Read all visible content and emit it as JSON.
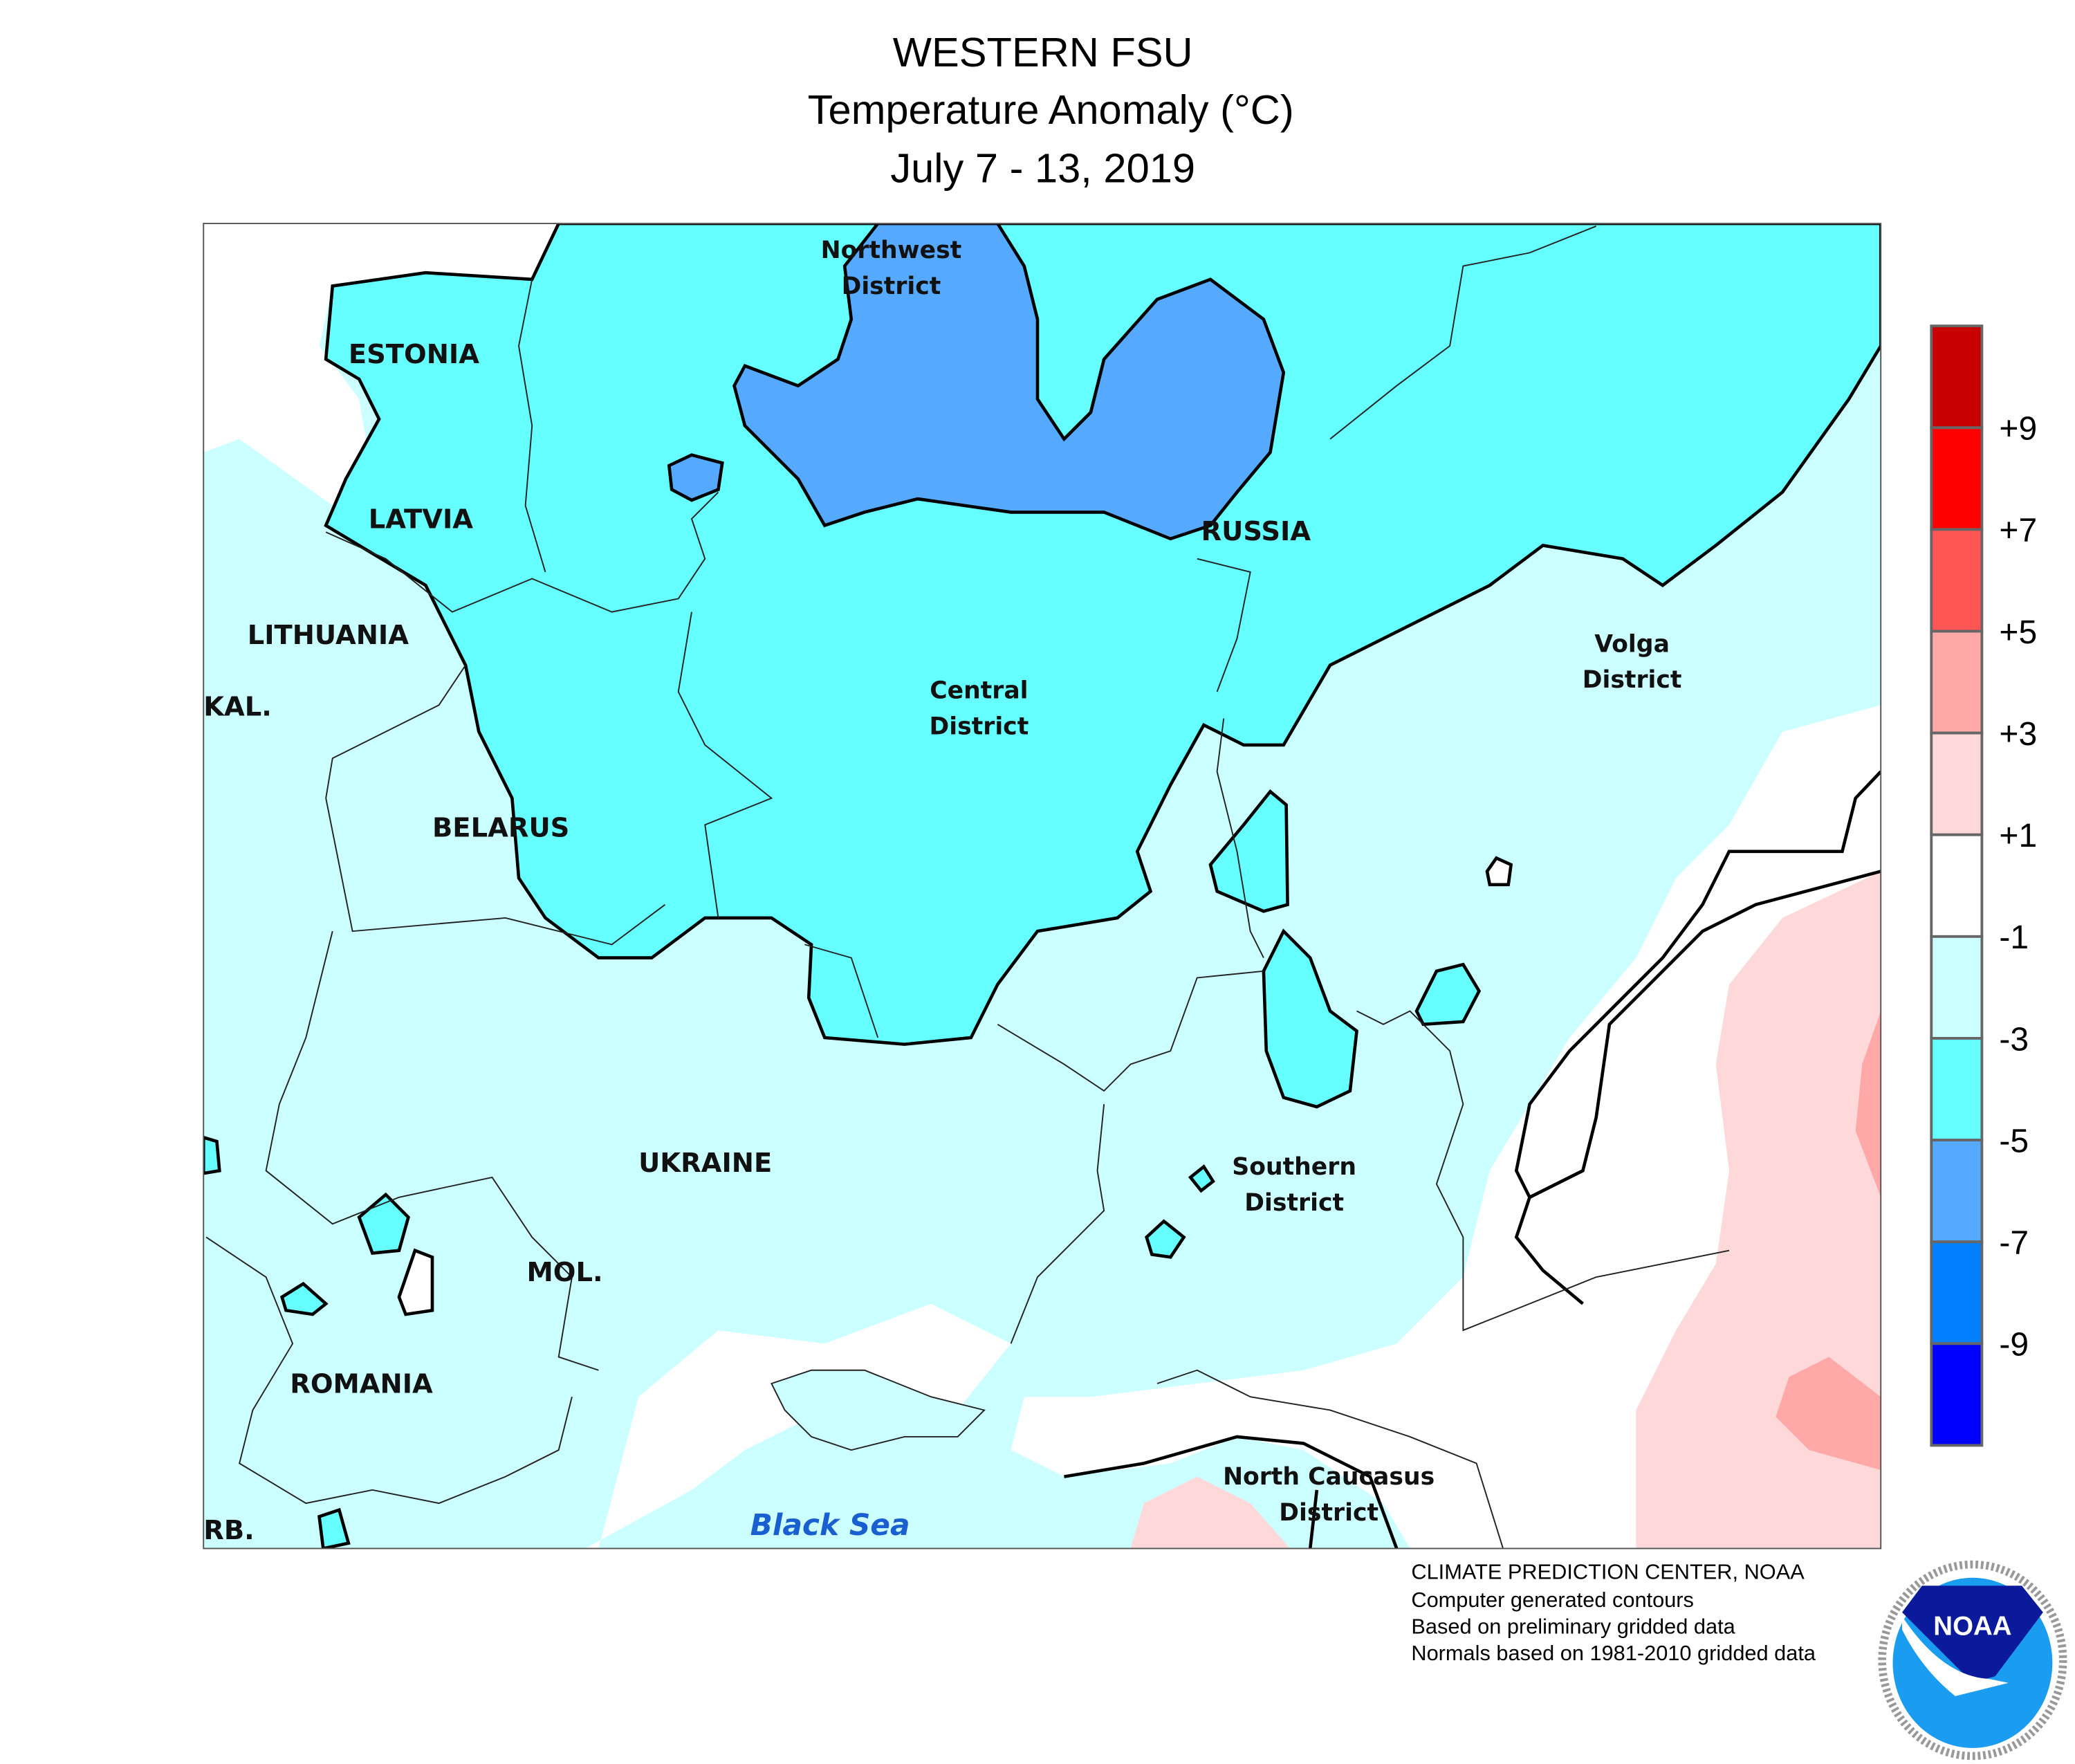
{
  "title": {
    "line1": "WESTERN FSU",
    "line2": "Temperature Anomaly (°C)",
    "line3": "July 7 - 13, 2019"
  },
  "map": {
    "labels": {
      "estonia": "ESTONIA",
      "latvia": "LATVIA",
      "lithuania": "LITHUANIA",
      "kaliningrad": "KAL.",
      "belarus": "BELARUS",
      "russia": "RUSSIA",
      "ukraine": "UKRAINE",
      "moldova": "MOL.",
      "romania": "ROMANIA",
      "serbia": "RB.",
      "black_sea": "Black Sea"
    },
    "districts": {
      "northwest": [
        "Northwest",
        "District"
      ],
      "central": [
        "Central",
        "District"
      ],
      "volga": [
        "Volga",
        "District"
      ],
      "southern": [
        "Southern",
        "District"
      ],
      "north_caucasus": [
        "North Caucasus",
        "District"
      ]
    }
  },
  "legend": {
    "colors": [
      "#c80000",
      "#ff0000",
      "#ff5555",
      "#ffa8a8",
      "#ffd9d9",
      "#ffffff",
      "#ccffff",
      "#66ffff",
      "#55aaff",
      "#0080ff",
      "#0000ff"
    ],
    "ticks": [
      "+9",
      "+7",
      "+5",
      "+3",
      "+1",
      "-1",
      "-3",
      "-5",
      "-7",
      "-9"
    ]
  },
  "footer": {
    "line1": "CLIMATE PREDICTION CENTER, NOAA",
    "line2": "Computer generated contours",
    "line3": "Based on preliminary gridded data",
    "line4": "Normals based on 1981-2010 gridded data"
  },
  "logo": {
    "text": "NOAA",
    "ring": "NATIONAL OCEANIC AND ATMOSPHERIC ADMINISTRATION · U.S. DEPARTMENT OF COMMERCE"
  }
}
